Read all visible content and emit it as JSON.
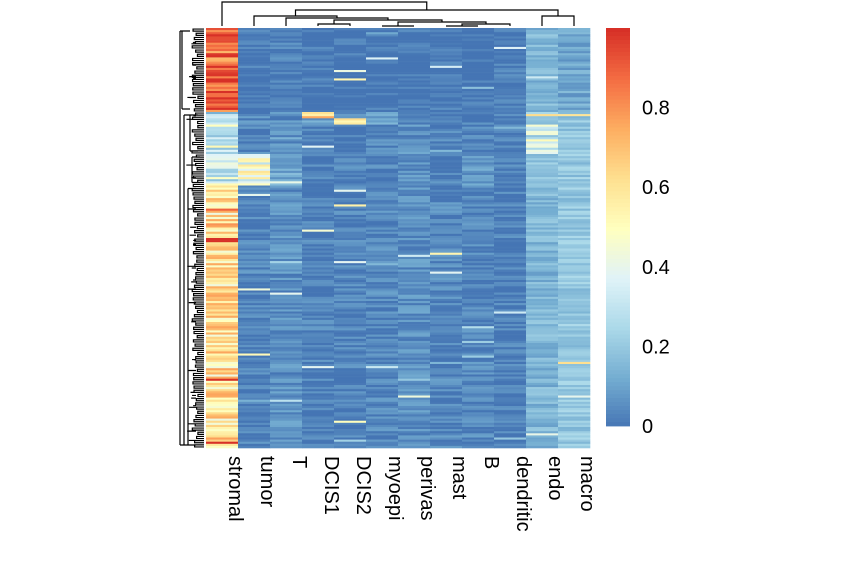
{
  "chart_data": {
    "type": "heatmap",
    "title": "",
    "xlabel": "",
    "ylabel": "",
    "columns": [
      "stromal",
      "tumor",
      "T",
      "DCIS1",
      "DCIS2",
      "myoepi",
      "perivas",
      "mast",
      "B",
      "dendritic",
      "endo",
      "macro"
    ],
    "row_count": 200,
    "value_range": [
      0,
      1
    ],
    "colorbar_ticks": [
      "0",
      "0.2",
      "0.4",
      "0.6",
      "0.8"
    ],
    "colorscale": [
      "#4575b4",
      "#74add1",
      "#abd9e9",
      "#e0f3f8",
      "#ffffbf",
      "#fee090",
      "#fdae61",
      "#f46d43",
      "#d73027"
    ],
    "dendrogram": {
      "rows": true,
      "columns": true
    },
    "row_clusters": [
      {
        "rows": 40,
        "typical": [
          0.88,
          0.01,
          0.02,
          0.0,
          0.0,
          0.0,
          0.0,
          0.01,
          0.0,
          0.01,
          0.15,
          0.12
        ]
      },
      {
        "rows": 3,
        "typical": [
          0.3,
          0.05,
          0.05,
          0.62,
          0.05,
          0.1,
          0.02,
          0.02,
          0.02,
          0.02,
          0.2,
          0.2
        ]
      },
      {
        "rows": 3,
        "typical": [
          0.3,
          0.05,
          0.05,
          0.1,
          0.6,
          0.1,
          0.02,
          0.02,
          0.02,
          0.02,
          0.2,
          0.2
        ]
      },
      {
        "rows": 14,
        "typical": [
          0.35,
          0.03,
          0.05,
          0.02,
          0.02,
          0.04,
          0.06,
          0.03,
          0.03,
          0.02,
          0.35,
          0.2
        ]
      },
      {
        "rows": 15,
        "typical": [
          0.35,
          0.45,
          0.12,
          0.02,
          0.03,
          0.03,
          0.06,
          0.03,
          0.08,
          0.02,
          0.18,
          0.2
        ]
      },
      {
        "rows": 125,
        "typical": [
          0.6,
          0.03,
          0.06,
          0.03,
          0.03,
          0.04,
          0.06,
          0.04,
          0.04,
          0.02,
          0.15,
          0.2
        ]
      }
    ]
  }
}
